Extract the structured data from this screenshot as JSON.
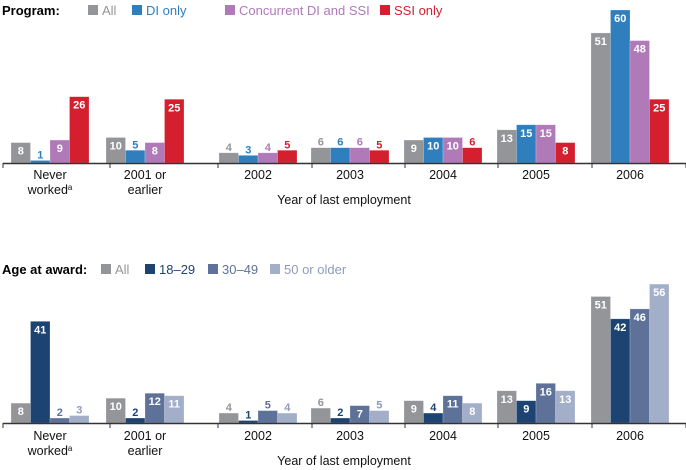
{
  "chart_data": [
    {
      "type": "bar",
      "legend_title": "Program:",
      "legend_placement": "top-left",
      "xlabel": "Year of last employment",
      "ylabel": "",
      "ylim": [
        0,
        60
      ],
      "grid": false,
      "categories": [
        "Never worked",
        "2001 or earlier",
        "2002",
        "2003",
        "2004",
        "2005",
        "2006"
      ],
      "category_lines": [
        [
          "Never",
          "worked"
        ],
        [
          "2001 or",
          "earlier"
        ],
        [
          "2002"
        ],
        [
          "2003"
        ],
        [
          "2004"
        ],
        [
          "2005"
        ],
        [
          "2006"
        ]
      ],
      "category_superscripts": [
        "a",
        "",
        "",
        "",
        "",
        "",
        ""
      ],
      "series": [
        {
          "name": "All",
          "color": "#939598",
          "label_color": "#939598",
          "values": [
            8,
            10,
            4,
            6,
            9,
            13,
            51
          ]
        },
        {
          "name": "DI only",
          "color": "#2f7fbf",
          "label_color": "#2f7fbf",
          "values": [
            1,
            5,
            3,
            6,
            10,
            15,
            60
          ]
        },
        {
          "name": "Concurrent DI and SSI",
          "color": "#b07ab8",
          "label_color": "#b07ab8",
          "values": [
            9,
            8,
            4,
            6,
            10,
            15,
            48
          ]
        },
        {
          "name": "SSI only",
          "color": "#d41f2f",
          "label_color": "#d41f2f",
          "values": [
            26,
            25,
            5,
            5,
            6,
            8,
            25
          ]
        }
      ]
    },
    {
      "type": "bar",
      "legend_title": "Age at award:",
      "legend_placement": "top-left",
      "xlabel": "Year of last employment",
      "ylabel": "",
      "ylim": [
        0,
        56
      ],
      "grid": false,
      "categories": [
        "Never worked",
        "2001 or earlier",
        "2002",
        "2003",
        "2004",
        "2005",
        "2006"
      ],
      "category_lines": [
        [
          "Never",
          "worked"
        ],
        [
          "2001 or",
          "earlier"
        ],
        [
          "2002"
        ],
        [
          "2003"
        ],
        [
          "2004"
        ],
        [
          "2005"
        ],
        [
          "2006"
        ]
      ],
      "category_superscripts": [
        "a",
        "",
        "",
        "",
        "",
        "",
        ""
      ],
      "series": [
        {
          "name": "All",
          "color": "#939598",
          "label_color": "#939598",
          "values": [
            8,
            10,
            4,
            6,
            9,
            13,
            51
          ]
        },
        {
          "name": "18–29",
          "color": "#1d4373",
          "label_color": "#1d4373",
          "values": [
            41,
            2,
            1,
            2,
            4,
            9,
            42
          ]
        },
        {
          "name": "30–49",
          "color": "#5e7299",
          "label_color": "#5e7299",
          "values": [
            2,
            12,
            5,
            7,
            11,
            16,
            46
          ]
        },
        {
          "name": "50 or older",
          "color": "#a3aec9",
          "label_color": "#8e9bbb",
          "values": [
            3,
            11,
            4,
            5,
            8,
            13,
            56
          ]
        }
      ]
    }
  ]
}
